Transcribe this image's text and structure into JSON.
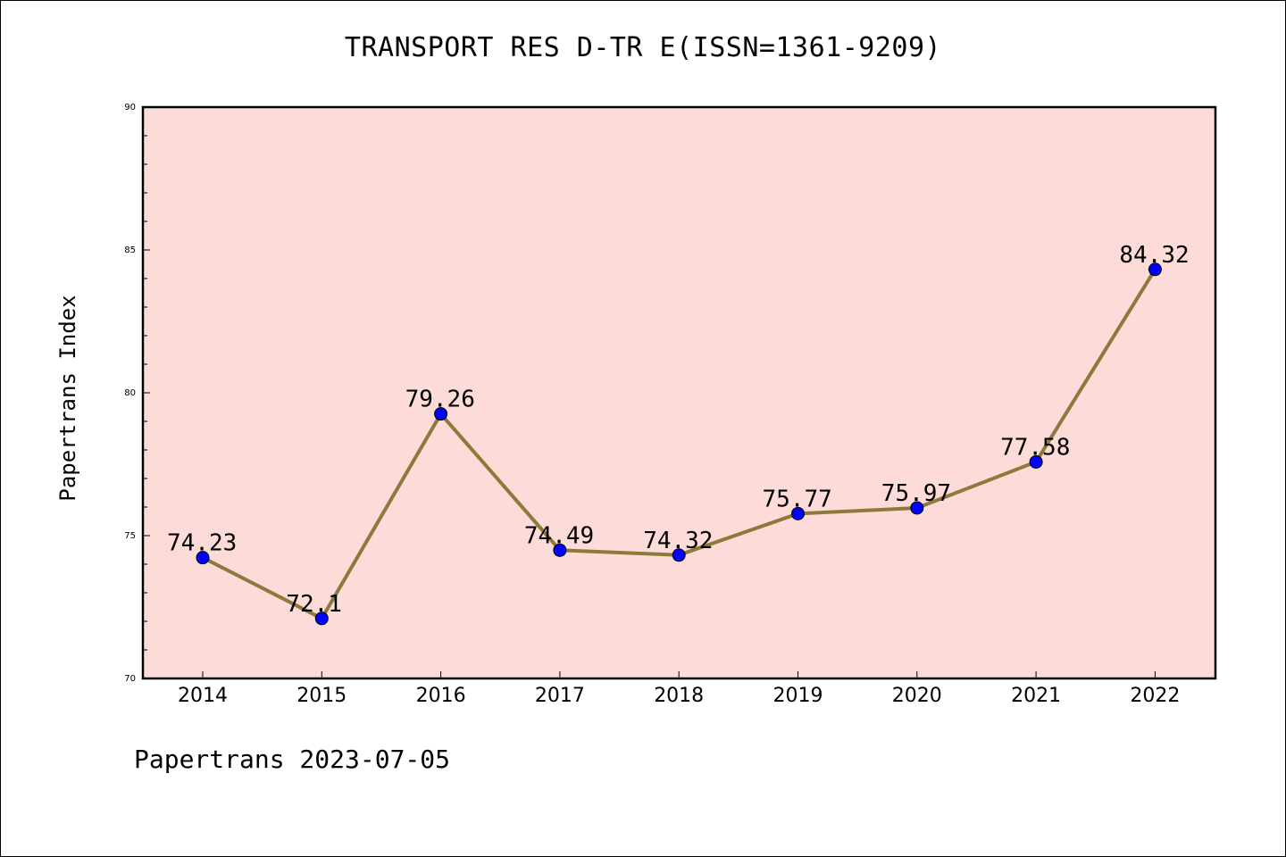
{
  "chart_data": {
    "type": "line",
    "title": "TRANSPORT RES D-TR E(ISSN=1361-9209)",
    "xlabel": "",
    "ylabel": "Papertrans Index",
    "categories": [
      "2014",
      "2015",
      "2016",
      "2017",
      "2018",
      "2019",
      "2020",
      "2021",
      "2022"
    ],
    "series": [
      {
        "values": [
          74.23,
          72.1,
          79.26,
          74.49,
          74.32,
          75.77,
          75.97,
          77.58,
          84.32
        ],
        "labels": [
          "74.23",
          "72.1",
          "79.26",
          "74.49",
          "74.32",
          "75.77",
          "75.97",
          "77.58",
          "84.32"
        ]
      }
    ],
    "ylim": [
      70,
      90
    ],
    "yticks": [
      70,
      75,
      80,
      85,
      90
    ],
    "grid": false,
    "colors": {
      "plot_background": "#fddbd8",
      "line": "#8c7a3a",
      "marker": "#0000ff"
    }
  },
  "footer": "Papertrans 2023-07-05"
}
